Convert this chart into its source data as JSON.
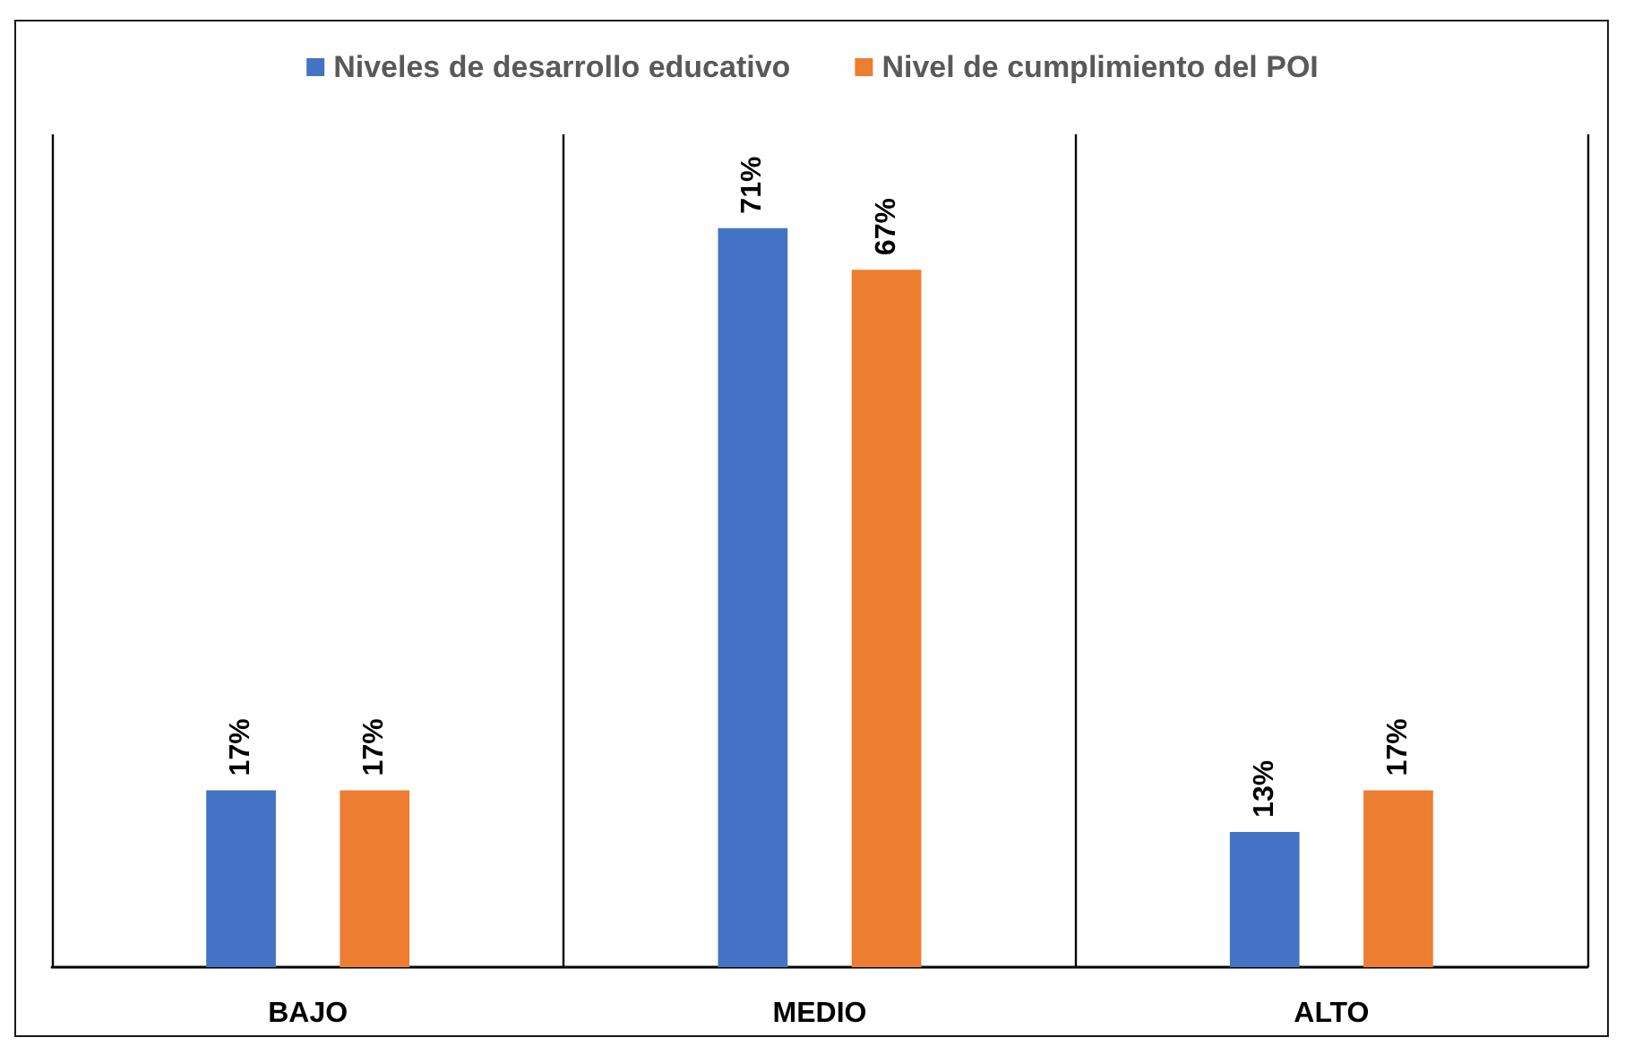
{
  "chart_data": {
    "type": "bar",
    "categories": [
      "BAJO",
      "MEDIO",
      "ALTO"
    ],
    "series": [
      {
        "name": "Niveles de desarrollo educativo",
        "color": "#4472c4",
        "values": [
          17,
          71,
          13
        ],
        "value_labels": [
          "17%",
          "71%",
          "13%"
        ]
      },
      {
        "name": "Nivel de cumplimiento del POI",
        "color": "#ed7d31",
        "values": [
          17,
          67,
          17
        ],
        "value_labels": [
          "17%",
          "67%",
          "17%"
        ]
      }
    ],
    "grid": "x",
    "legend": "top"
  }
}
